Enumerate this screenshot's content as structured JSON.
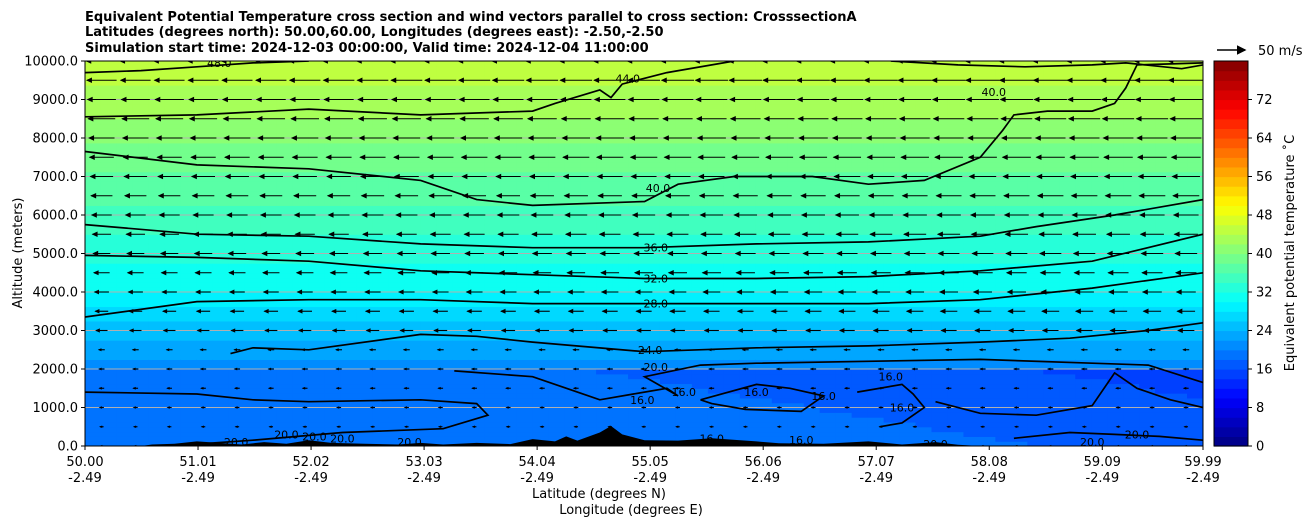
{
  "chart_data": {
    "type": "heatmap",
    "title_lines": [
      "Equivalent Potential Temperature cross section and wind vectors parallel to cross section: CrosssectionA",
      "Latitudes (degrees north): 50.00,60.00, Longitudes (degrees east): -2.50,-2.50",
      "Simulation start time: 2024-12-03 00:00:00, Valid time: 2024-12-04 11:00:00"
    ],
    "xlabel_1": "Latitude (degrees N)",
    "xlabel_2": "Longitude (degrees E)",
    "ylabel": "Altitude (meters)",
    "xlim": [
      50.0,
      59.99
    ],
    "ylim": [
      0,
      10000
    ],
    "x_ticks": [
      {
        "lat": "50.00",
        "lon": "-2.49",
        "v": 50.0
      },
      {
        "lat": "51.01",
        "lon": "-2.49",
        "v": 51.01
      },
      {
        "lat": "52.02",
        "lon": "-2.49",
        "v": 52.02
      },
      {
        "lat": "53.03",
        "lon": "-2.49",
        "v": 53.03
      },
      {
        "lat": "54.04",
        "lon": "-2.49",
        "v": 54.04
      },
      {
        "lat": "55.05",
        "lon": "-2.49",
        "v": 55.05
      },
      {
        "lat": "56.06",
        "lon": "-2.49",
        "v": 56.06
      },
      {
        "lat": "57.07",
        "lon": "-2.49",
        "v": 57.07
      },
      {
        "lat": "58.08",
        "lon": "-2.49",
        "v": 58.08
      },
      {
        "lat": "59.09",
        "lon": "-2.49",
        "v": 59.09
      },
      {
        "lat": "59.99",
        "lon": "-2.49",
        "v": 59.99
      }
    ],
    "y_ticks": [
      "0.0",
      "1000.0",
      "2000.0",
      "3000.0",
      "4000.0",
      "5000.0",
      "6000.0",
      "7000.0",
      "8000.0",
      "9000.0",
      "10000.0"
    ],
    "grid": "horizontal",
    "colorbar": {
      "label": "Equivalent potential temperature ˚C",
      "ticks": [
        "0",
        "8",
        "16",
        "24",
        "32",
        "40",
        "48",
        "56",
        "64",
        "72"
      ],
      "range": [
        0,
        80
      ]
    },
    "quiver_key": "50 m/s",
    "contour_labels": [
      {
        "text": "48.0",
        "x": 51.2,
        "y": 9950
      },
      {
        "text": "44.0",
        "x": 54.85,
        "y": 9550
      },
      {
        "text": "40.0",
        "x": 58.12,
        "y": 9200
      },
      {
        "text": "40.0",
        "x": 55.12,
        "y": 6700
      },
      {
        "text": "36.0",
        "x": 55.1,
        "y": 5150
      },
      {
        "text": "32.0",
        "x": 55.1,
        "y": 4350
      },
      {
        "text": "28.0",
        "x": 55.1,
        "y": 3700
      },
      {
        "text": "24.0",
        "x": 55.05,
        "y": 2500
      },
      {
        "text": "20.0",
        "x": 55.1,
        "y": 2050
      },
      {
        "text": "16.0",
        "x": 54.98,
        "y": 1200
      },
      {
        "text": "16.0",
        "x": 55.35,
        "y": 1400
      },
      {
        "text": "16.0",
        "x": 56.0,
        "y": 1400
      },
      {
        "text": "16.0",
        "x": 56.6,
        "y": 1300
      },
      {
        "text": "16.0",
        "x": 57.2,
        "y": 1800
      },
      {
        "text": "16.0",
        "x": 57.3,
        "y": 1000
      },
      {
        "text": "16.0",
        "x": 56.4,
        "y": 150
      },
      {
        "text": "16.0",
        "x": 55.6,
        "y": 200
      },
      {
        "text": "20.0",
        "x": 51.35,
        "y": 100
      },
      {
        "text": "20.0",
        "x": 51.8,
        "y": 300
      },
      {
        "text": "20.0",
        "x": 52.05,
        "y": 250
      },
      {
        "text": "20.0",
        "x": 52.3,
        "y": 200
      },
      {
        "text": "20.0",
        "x": 52.9,
        "y": 100
      },
      {
        "text": "20.0",
        "x": 57.6,
        "y": 50
      },
      {
        "text": "20.0",
        "x": 59.0,
        "y": 100
      },
      {
        "text": "20.0",
        "x": 59.4,
        "y": 300
      }
    ]
  }
}
